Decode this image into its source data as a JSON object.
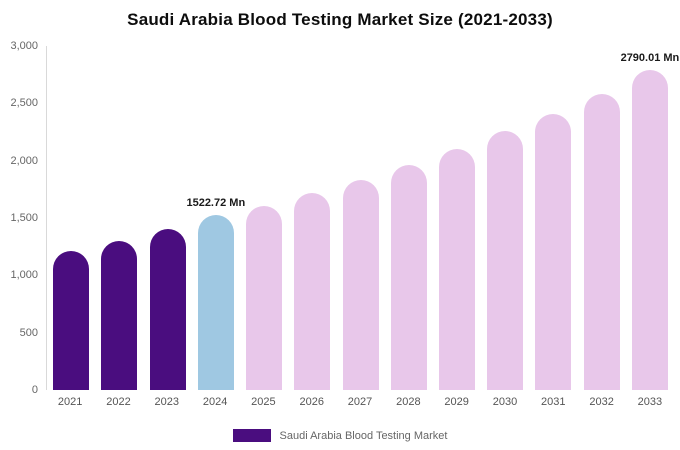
{
  "chart_data": {
    "type": "bar",
    "title": "Saudi Arabia Blood Testing Market Size (2021-2033)",
    "categories": [
      "2021",
      "2022",
      "2023",
      "2024",
      "2025",
      "2026",
      "2027",
      "2028",
      "2029",
      "2030",
      "2031",
      "2032",
      "2033"
    ],
    "values": [
      1210,
      1300,
      1400,
      1522.72,
      1605,
      1715,
      1835,
      1965,
      2105,
      2255,
      2410,
      2585,
      2790.01
    ],
    "unit": "Mn",
    "ylim": [
      0,
      3000
    ],
    "ytick_labels": [
      "0",
      "500",
      "1,000",
      "1,500",
      "2,000",
      "2,500",
      "3,000"
    ],
    "bar_colors": [
      "#4a0d7f",
      "#4a0d7f",
      "#4a0d7f",
      "#9fc8e2",
      "#e8c7ea",
      "#e8c7ea",
      "#e8c7ea",
      "#e8c7ea",
      "#e8c7ea",
      "#e8c7ea",
      "#e8c7ea",
      "#e8c7ea",
      "#e8c7ea"
    ],
    "annotations": [
      {
        "index": 3,
        "text": "1522.72 Mn"
      },
      {
        "index": 12,
        "text": "2790.01 Mn"
      }
    ],
    "grid": false,
    "legend_position": "bottom",
    "legend": [
      {
        "label": "Saudi Arabia Blood Testing Market",
        "color": "#4a0d7f"
      }
    ]
  }
}
